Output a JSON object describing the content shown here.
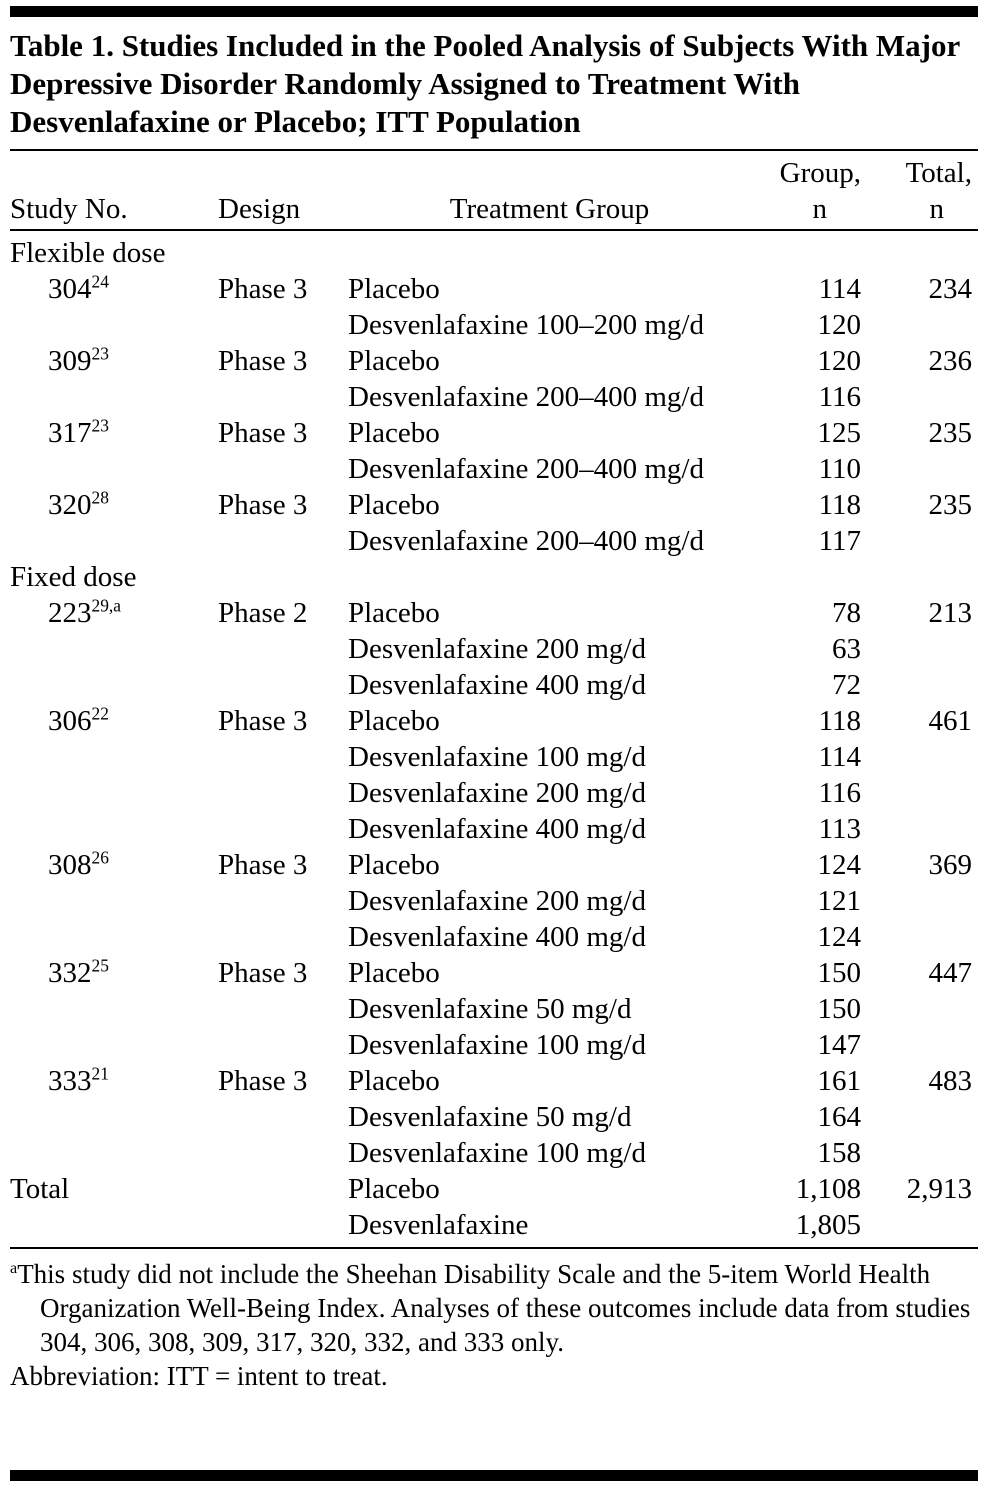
{
  "title": "Table 1. Studies Included in the Pooled Analysis of Subjects With Major Depressive Disorder Randomly Assigned to Treatment With Desvenlafaxine or Placebo; ITT Population",
  "table": {
    "columns": {
      "study": "Study No.",
      "design": "Design",
      "treatment": "Treatment Group",
      "group_line1": "Group,",
      "group_line2": "n",
      "total_line1": "Total,",
      "total_line2": "n"
    },
    "rows": [
      {
        "section": "Flexible dose"
      },
      {
        "study": "304",
        "sup": "24",
        "indent": true,
        "design": "Phase 3",
        "treatment": "Placebo",
        "group_n": "114",
        "total_n": "234"
      },
      {
        "treatment": "Desvenlafaxine 100–200 mg/d",
        "group_n": "120"
      },
      {
        "study": "309",
        "sup": "23",
        "indent": true,
        "design": "Phase 3",
        "treatment": "Placebo",
        "group_n": "120",
        "total_n": "236"
      },
      {
        "treatment": "Desvenlafaxine 200–400 mg/d",
        "group_n": "116"
      },
      {
        "study": "317",
        "sup": "23",
        "indent": true,
        "design": "Phase 3",
        "treatment": "Placebo",
        "group_n": "125",
        "total_n": "235"
      },
      {
        "treatment": "Desvenlafaxine 200–400 mg/d",
        "group_n": "110"
      },
      {
        "study": "320",
        "sup": "28",
        "indent": true,
        "design": "Phase 3",
        "treatment": "Placebo",
        "group_n": "118",
        "total_n": "235"
      },
      {
        "treatment": "Desvenlafaxine 200–400 mg/d",
        "group_n": "117"
      },
      {
        "section": "Fixed dose"
      },
      {
        "study": "223",
        "sup": "29,a",
        "indent": true,
        "design": "Phase 2",
        "treatment": "Placebo",
        "group_n": "78",
        "total_n": "213"
      },
      {
        "treatment": "Desvenlafaxine 200 mg/d",
        "group_n": "63"
      },
      {
        "treatment": "Desvenlafaxine 400 mg/d",
        "group_n": "72"
      },
      {
        "study": "306",
        "sup": "22",
        "indent": true,
        "design": "Phase 3",
        "treatment": "Placebo",
        "group_n": "118",
        "total_n": "461"
      },
      {
        "treatment": "Desvenlafaxine 100 mg/d",
        "group_n": "114"
      },
      {
        "treatment": "Desvenlafaxine 200 mg/d",
        "group_n": "116"
      },
      {
        "treatment": "Desvenlafaxine 400 mg/d",
        "group_n": "113"
      },
      {
        "study": "308",
        "sup": "26",
        "indent": true,
        "design": "Phase 3",
        "treatment": "Placebo",
        "group_n": "124",
        "total_n": "369"
      },
      {
        "treatment": "Desvenlafaxine 200 mg/d",
        "group_n": "121"
      },
      {
        "treatment": "Desvenlafaxine 400 mg/d",
        "group_n": "124"
      },
      {
        "study": "332",
        "sup": "25",
        "indent": true,
        "design": "Phase 3",
        "treatment": "Placebo",
        "group_n": "150",
        "total_n": "447"
      },
      {
        "treatment": "Desvenlafaxine 50 mg/d",
        "group_n": "150"
      },
      {
        "treatment": "Desvenlafaxine 100 mg/d",
        "group_n": "147"
      },
      {
        "study": "333",
        "sup": "21",
        "indent": true,
        "design": "Phase 3",
        "treatment": "Placebo",
        "group_n": "161",
        "total_n": "483"
      },
      {
        "treatment": "Desvenlafaxine 50 mg/d",
        "group_n": "164"
      },
      {
        "treatment": "Desvenlafaxine 100 mg/d",
        "group_n": "158"
      },
      {
        "study": "Total",
        "indent": false,
        "design": "",
        "treatment": "Placebo",
        "group_n": "1,108",
        "total_n": "2,913"
      },
      {
        "treatment": "Desvenlafaxine",
        "group_n": "1,805"
      }
    ]
  },
  "footnotes": [
    {
      "marker": "a",
      "text": "This study did not include the Sheehan Disability Scale and the 5-item World Health Organization Well-Being Index. Analyses of these outcomes include data from studies 304, 306, 308, 309, 317, 320, 332, and 333 only."
    },
    {
      "marker": "",
      "text": "Abbreviation: ITT = intent to treat."
    }
  ],
  "colors": {
    "text": "#000000",
    "rule": "#000000",
    "background": "#ffffff"
  }
}
